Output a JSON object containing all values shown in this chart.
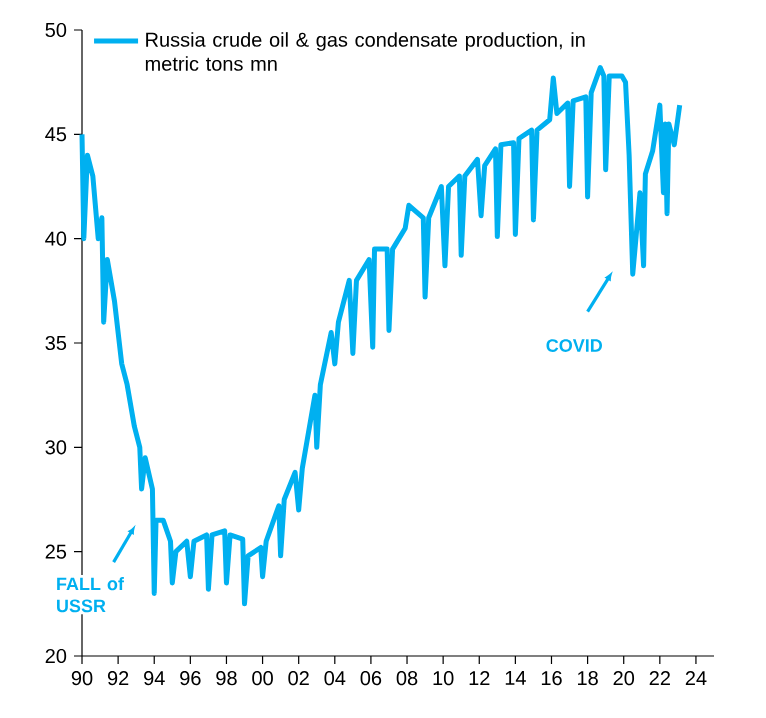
{
  "chart_data": {
    "type": "line",
    "legend": "top left",
    "marker": "none",
    "line_style": "solid",
    "xlim": [
      1990,
      2025
    ],
    "xticks": [
      {
        "value": 1990,
        "label": "90"
      },
      {
        "value": 1992,
        "label": "92"
      },
      {
        "value": 1994,
        "label": "94"
      },
      {
        "value": 1996,
        "label": "96"
      },
      {
        "value": 1998,
        "label": "98"
      },
      {
        "value": 2000,
        "label": "00"
      },
      {
        "value": 2002,
        "label": "02"
      },
      {
        "value": 2004,
        "label": "04"
      },
      {
        "value": 2006,
        "label": "06"
      },
      {
        "value": 2008,
        "label": "08"
      },
      {
        "value": 2010,
        "label": "10"
      },
      {
        "value": 2012,
        "label": "12"
      },
      {
        "value": 2014,
        "label": "14"
      },
      {
        "value": 2016,
        "label": "16"
      },
      {
        "value": 2018,
        "label": "18"
      },
      {
        "value": 2020,
        "label": "20"
      },
      {
        "value": 2022,
        "label": "22"
      },
      {
        "value": 2024,
        "label": "24"
      }
    ],
    "ylim": [
      20,
      50
    ],
    "yticks": [
      20,
      25,
      30,
      35,
      40,
      45,
      50
    ],
    "annotations": [
      "FALL of USSR",
      "COVID"
    ],
    "series": [
      {
        "name": "Russia crude oil & gas condensate production, in metric tons mn",
        "color": "#00b0f0",
        "x": [
          1990.0,
          1990.1,
          1990.3,
          1990.6,
          1990.9,
          1991.1,
          1991.2,
          1991.4,
          1991.8,
          1992.2,
          1992.5,
          1992.9,
          1993.2,
          1993.3,
          1993.5,
          1993.9,
          1994.0,
          1994.1,
          1994.5,
          1994.9,
          1995.0,
          1995.2,
          1995.8,
          1996.0,
          1996.2,
          1996.9,
          1997.0,
          1997.2,
          1997.9,
          1998.0,
          1998.2,
          1998.9,
          1999.0,
          1999.2,
          1999.9,
          2000.0,
          2000.2,
          2000.9,
          2001.0,
          2001.2,
          2001.8,
          2002.0,
          2002.2,
          2002.9,
          2003.0,
          2003.2,
          2003.8,
          2004.0,
          2004.2,
          2004.8,
          2005.0,
          2005.2,
          2005.9,
          2006.1,
          2006.2,
          2006.9,
          2007.0,
          2007.2,
          2007.9,
          2008.1,
          2008.9,
          2009.0,
          2009.2,
          2009.9,
          2010.1,
          2010.3,
          2010.9,
          2011.0,
          2011.2,
          2011.9,
          2012.1,
          2012.3,
          2012.9,
          2013.0,
          2013.2,
          2013.9,
          2014.0,
          2014.2,
          2014.9,
          2015.0,
          2015.2,
          2015.9,
          2016.1,
          2016.3,
          2016.9,
          2017.0,
          2017.2,
          2017.9,
          2018.0,
          2018.2,
          2018.7,
          2018.9,
          2019.0,
          2019.2,
          2019.9,
          2020.1,
          2020.3,
          2020.5,
          2020.9,
          2021.1,
          2021.2,
          2021.6,
          2022.0,
          2022.2,
          2022.3,
          2022.4,
          2022.5,
          2022.8,
          2023.1
        ],
        "values": [
          45,
          40,
          44,
          43,
          40,
          41,
          36,
          39,
          37,
          34,
          33,
          31,
          30,
          28,
          29.5,
          28,
          23,
          26.5,
          26.5,
          25.5,
          23.5,
          25,
          25.5,
          23.8,
          25.5,
          25.8,
          23.2,
          25.8,
          26,
          23.5,
          25.8,
          25.6,
          22.5,
          24.8,
          25.2,
          23.8,
          25.5,
          27.2,
          24.8,
          27.5,
          28.8,
          27,
          29,
          32.5,
          30,
          33,
          35.5,
          34,
          36,
          38,
          34.5,
          38,
          39,
          34.8,
          39.5,
          39.5,
          35.6,
          39.5,
          40.5,
          41.6,
          41,
          37.2,
          41,
          42.5,
          38.7,
          42.5,
          43,
          39.2,
          43,
          43.8,
          41.1,
          43.5,
          44.3,
          40.1,
          44.5,
          44.6,
          40.2,
          44.8,
          45.2,
          40.9,
          45.2,
          45.7,
          47.7,
          46,
          46.5,
          42.5,
          46.6,
          46.8,
          42,
          47,
          48.2,
          47.8,
          43.3,
          47.8,
          47.8,
          47.5,
          44,
          38.3,
          42.2,
          38.7,
          43.1,
          44.2,
          46.4,
          42.2,
          45.5,
          41.2,
          45.5,
          44.5,
          46.4
        ]
      }
    ]
  }
}
